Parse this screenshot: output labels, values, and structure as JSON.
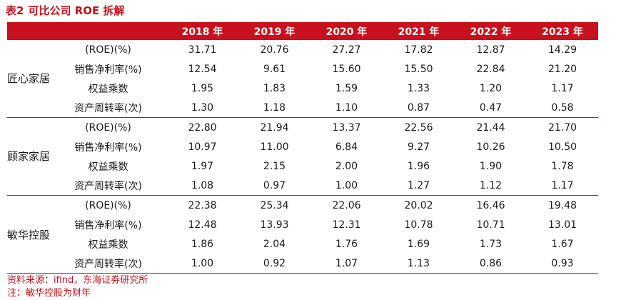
{
  "title": {
    "number": "表2",
    "text": "可比公司 ROE 拆解"
  },
  "header": [
    "",
    "",
    "2018 年",
    "2019 年",
    "2020 年",
    "2021 年",
    "2022 年",
    "2023 年"
  ],
  "groups": [
    {
      "company": "匠心家居",
      "rows": [
        {
          "metric": "(ROE)(%)",
          "values": [
            "31.71",
            "20.76",
            "27.27",
            "17.82",
            "12.87",
            "14.29"
          ]
        },
        {
          "metric": "销售净利率(%)",
          "values": [
            "12.54",
            "9.61",
            "15.60",
            "15.50",
            "22.84",
            "21.20"
          ]
        },
        {
          "metric": "权益乘数",
          "values": [
            "1.95",
            "1.83",
            "1.59",
            "1.33",
            "1.20",
            "1.17"
          ]
        },
        {
          "metric": "资产周转率(次)",
          "values": [
            "1.30",
            "1.18",
            "1.10",
            "0.87",
            "0.47",
            "0.58"
          ]
        }
      ]
    },
    {
      "company": "顾家家居",
      "rows": [
        {
          "metric": "(ROE)(%)",
          "values": [
            "22.80",
            "21.94",
            "13.37",
            "22.56",
            "21.44",
            "21.70"
          ]
        },
        {
          "metric": "销售净利率(%)",
          "values": [
            "10.97",
            "11.00",
            "6.84",
            "9.27",
            "10.26",
            "10.50"
          ]
        },
        {
          "metric": "权益乘数",
          "values": [
            "1.97",
            "2.15",
            "2.00",
            "1.96",
            "1.90",
            "1.78"
          ]
        },
        {
          "metric": "资产周转率(次)",
          "values": [
            "1.08",
            "0.97",
            "1.00",
            "1.27",
            "1.12",
            "1.17"
          ]
        }
      ]
    },
    {
      "company": "敏华控股",
      "rows": [
        {
          "metric": "(ROE)(%)",
          "values": [
            "22.38",
            "25.34",
            "22.06",
            "20.02",
            "16.46",
            "19.48"
          ]
        },
        {
          "metric": "销售净利率(%)",
          "values": [
            "12.48",
            "13.93",
            "12.31",
            "10.78",
            "10.71",
            "13.01"
          ]
        },
        {
          "metric": "权益乘数",
          "values": [
            "1.86",
            "2.04",
            "1.76",
            "1.69",
            "1.73",
            "1.67"
          ]
        },
        {
          "metric": "资产周转率(次)",
          "values": [
            "1.00",
            "0.92",
            "1.07",
            "1.13",
            "0.86",
            "0.93"
          ]
        }
      ]
    }
  ],
  "footer": {
    "source": "资料来源：ifind，东海证券研究所",
    "note": "注：敏华控股为财年"
  }
}
